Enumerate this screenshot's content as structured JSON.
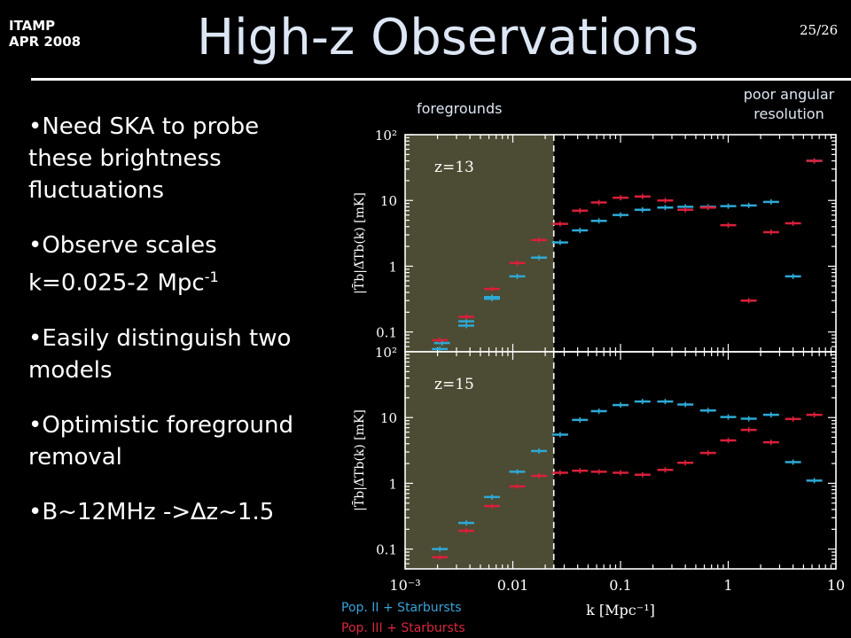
{
  "slide": {
    "meta_line1": "ITAMP",
    "meta_line2": "APR 2008",
    "page_number": "25/26",
    "title": "High-z Observations"
  },
  "bullets": [
    "•Need SKA to probe these brightness fluctuations",
    "•Observe scales k=0.025-2 Mpc",
    "-1",
    "•Easily distinguish two models",
    "•Optimistic foreground removal",
    "•B~12MHz ->∆z~1.5"
  ],
  "captions": {
    "foregrounds": "foregrounds",
    "resolution_line1": "poor angular",
    "resolution_line2": "resolution"
  },
  "legend": [
    {
      "label": "Pop. II + Starbursts",
      "color": "#3aa3d6"
    },
    {
      "label": "Pop. III + Starbursts",
      "color": "#d8283f"
    }
  ],
  "colors": {
    "pop2": "#2ea9d5",
    "pop3": "#d8203a",
    "shade": "#4c4b33"
  },
  "chart_data": [
    {
      "type": "scatter",
      "panel_label": "z=13",
      "xlabel": "k [Mpc⁻¹]",
      "ylabel": "|T̄b|Δ̄Tb(k) [mK]",
      "x_scale": "log",
      "y_scale": "log",
      "xlim": [
        0.001,
        10
      ],
      "ylim": [
        0.05,
        100
      ],
      "x_ticks": [
        "10⁻³",
        "0.01",
        "0.1",
        "1",
        "10"
      ],
      "y_ticks": [
        "10²",
        "10",
        "1",
        "0.1"
      ],
      "foreground_cut_k": 0.024,
      "series": [
        {
          "name": "Pop. II + Starbursts",
          "points": [
            [
              0.0021,
              0.055
            ],
            [
              0.0022,
              0.068
            ],
            [
              0.0037,
              0.125
            ],
            [
              0.0037,
              0.145
            ],
            [
              0.0064,
              0.32
            ],
            [
              0.0064,
              0.34
            ],
            [
              0.011,
              0.7
            ],
            [
              0.0175,
              1.35
            ],
            [
              0.0275,
              2.3
            ],
            [
              0.042,
              3.5
            ],
            [
              0.063,
              4.9
            ],
            [
              0.1,
              6.0
            ],
            [
              0.16,
              7.2
            ],
            [
              0.26,
              7.8
            ],
            [
              0.4,
              8.0
            ],
            [
              0.65,
              8.0
            ],
            [
              1.0,
              8.2
            ],
            [
              1.55,
              8.4
            ],
            [
              2.5,
              9.5
            ],
            [
              4.0,
              0.7
            ],
            [
              6.3,
              40
            ]
          ]
        },
        {
          "name": "Pop. III + Starbursts",
          "points": [
            [
              0.0021,
              0.075
            ],
            [
              0.0037,
              0.17
            ],
            [
              0.0064,
              0.45
            ],
            [
              0.011,
              1.12
            ],
            [
              0.0175,
              2.5
            ],
            [
              0.0275,
              4.4
            ],
            [
              0.042,
              7.0
            ],
            [
              0.063,
              9.3
            ],
            [
              0.1,
              11
            ],
            [
              0.16,
              11.5
            ],
            [
              0.26,
              10
            ],
            [
              0.4,
              7.2
            ],
            [
              0.65,
              7.8
            ],
            [
              1.0,
              4.2
            ],
            [
              1.55,
              0.3
            ],
            [
              2.5,
              3.3
            ],
            [
              4.0,
              4.5
            ],
            [
              6.3,
              40
            ]
          ]
        }
      ]
    },
    {
      "type": "scatter",
      "panel_label": "z=15",
      "xlabel": "k [Mpc⁻¹]",
      "ylabel": "|T̄b|Δ̄Tb(k) [mK]",
      "x_scale": "log",
      "y_scale": "log",
      "xlim": [
        0.001,
        10
      ],
      "ylim": [
        0.05,
        100
      ],
      "x_ticks": [
        "10⁻³",
        "0.01",
        "0.1",
        "1",
        "10"
      ],
      "y_ticks": [
        "10²",
        "10",
        "1",
        "0.1"
      ],
      "foreground_cut_k": 0.024,
      "series": [
        {
          "name": "Pop. II + Starbursts",
          "points": [
            [
              0.0021,
              0.1
            ],
            [
              0.0037,
              0.25
            ],
            [
              0.0064,
              0.62
            ],
            [
              0.011,
              1.5
            ],
            [
              0.0175,
              3.1
            ],
            [
              0.0275,
              5.5
            ],
            [
              0.042,
              9.2
            ],
            [
              0.063,
              12.5
            ],
            [
              0.1,
              15.5
            ],
            [
              0.16,
              17.5
            ],
            [
              0.26,
              17.5
            ],
            [
              0.4,
              15.8
            ],
            [
              0.65,
              12.8
            ],
            [
              1.0,
              10.2
            ],
            [
              1.55,
              9.6
            ],
            [
              2.5,
              11
            ],
            [
              4.0,
              2.1
            ],
            [
              6.3,
              1.1
            ]
          ]
        },
        {
          "name": "Pop. III + Starbursts",
          "points": [
            [
              0.0021,
              0.075
            ],
            [
              0.0037,
              0.19
            ],
            [
              0.0064,
              0.45
            ],
            [
              0.011,
              0.9
            ],
            [
              0.0175,
              1.3
            ],
            [
              0.0275,
              1.45
            ],
            [
              0.042,
              1.55
            ],
            [
              0.063,
              1.5
            ],
            [
              0.1,
              1.45
            ],
            [
              0.16,
              1.35
            ],
            [
              0.26,
              1.6
            ],
            [
              0.4,
              2.05
            ],
            [
              0.65,
              2.9
            ],
            [
              1.0,
              4.5
            ],
            [
              1.55,
              6.5
            ],
            [
              2.5,
              4.2
            ],
            [
              4.0,
              9.5
            ],
            [
              6.3,
              11
            ]
          ]
        }
      ]
    }
  ]
}
